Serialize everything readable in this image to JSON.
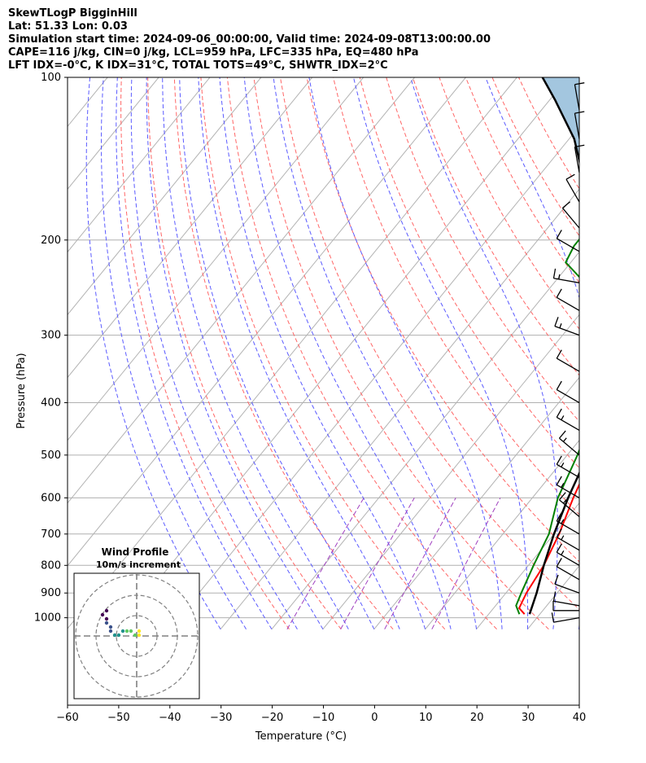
{
  "header": {
    "title": "SkewTLogP BigginHill",
    "location": "Lat: 51.33   Lon: 0.03",
    "times": "Simulation start time: 2024-09-06_00:00:00, Valid time: 2024-09-08T13:00:00.00",
    "indices1": "CAPE=116 j/kg, CIN=0 j/kg, LCL=959 hPa, LFC=335 hPa, EQ=480 hPa",
    "indices2": "LFT IDX=-0°C, K IDX=31°C, TOTAL TOTS=49°C, SHWTR_IDX=2°C"
  },
  "chart_data": [
    {
      "type": "line",
      "subtype": "skew-t log-p",
      "xlabel": "Temperature (°C)",
      "ylabel": "Pressure (hPa)",
      "xlim": [
        -60,
        40
      ],
      "ylim": [
        1050,
        100
      ],
      "y_scale": "log",
      "x_ticks": [
        "−60",
        "−50",
        "−40",
        "−30",
        "−20",
        "−10",
        "0",
        "10",
        "20",
        "30",
        "40"
      ],
      "y_ticks": [
        "100",
        "200",
        "300",
        "400",
        "500",
        "600",
        "700",
        "800",
        "900",
        "1000"
      ],
      "grid": true,
      "colors": {
        "temperature": "#ff0000",
        "dewpoint": "#008000",
        "parcel": "#000000",
        "cape_fill": "#a3c6df",
        "dry_adiabat": "#ff6666",
        "moist_adiabat": "#5a5aff",
        "mixing_ratio": "#a040c0",
        "skew_isotherm": "#b3b3b3",
        "wind_barb": "#000000"
      },
      "series": [
        {
          "role": "temperature",
          "points": [
            [
              17,
              985
            ],
            [
              15,
              960
            ],
            [
              14,
              900
            ],
            [
              13,
              800
            ],
            [
              11,
              700
            ],
            [
              8,
              600
            ],
            [
              5,
              500
            ],
            [
              0,
              400
            ],
            [
              -6,
              330
            ],
            [
              -9,
              300
            ],
            [
              -10,
              290
            ],
            [
              -3,
              260
            ],
            [
              2,
              240
            ],
            [
              3,
              220
            ],
            [
              2,
              200
            ],
            [
              1,
              180
            ],
            [
              1,
              160
            ],
            [
              0,
              140
            ],
            [
              -1,
              120
            ],
            [
              -4,
              110
            ],
            [
              -7,
              100
            ]
          ]
        },
        {
          "role": "dewpoint",
          "points": [
            [
              16,
              985
            ],
            [
              14,
              950
            ],
            [
              13,
              900
            ],
            [
              11,
              800
            ],
            [
              9,
              700
            ],
            [
              5,
              600
            ],
            [
              2,
              500
            ],
            [
              -1,
              430
            ],
            [
              -5,
              380
            ],
            [
              -10,
              330
            ],
            [
              -16,
              280
            ],
            [
              -24,
              240
            ],
            [
              -31,
              220
            ],
            [
              -32,
              205
            ],
            [
              -32,
              185
            ],
            [
              -32,
              170
            ],
            [
              -32,
              150
            ],
            [
              -29,
              130
            ],
            [
              -26,
              115
            ],
            [
              -25,
              100
            ]
          ]
        },
        {
          "role": "parcel",
          "points": [
            [
              18,
              985
            ],
            [
              16,
              900
            ],
            [
              13,
              800
            ],
            [
              10,
              700
            ],
            [
              7,
              600
            ],
            [
              4,
              500
            ],
            [
              -1,
              400
            ],
            [
              -5,
              335
            ],
            [
              -11,
              300
            ],
            [
              -19,
              250
            ],
            [
              -29,
              200
            ],
            [
              -39,
              160
            ],
            [
              -49,
              130
            ],
            [
              -59,
              110
            ],
            [
              -65,
              100
            ]
          ]
        }
      ],
      "wind_barbs": [
        {
          "p": 1000,
          "speed_kt": 10,
          "dir": 260
        },
        {
          "p": 970,
          "speed_kt": 10,
          "dir": 270
        },
        {
          "p": 950,
          "speed_kt": 10,
          "dir": 280
        },
        {
          "p": 900,
          "speed_kt": 10,
          "dir": 290
        },
        {
          "p": 850,
          "speed_kt": 10,
          "dir": 300
        },
        {
          "p": 800,
          "speed_kt": 15,
          "dir": 300
        },
        {
          "p": 750,
          "speed_kt": 15,
          "dir": 300
        },
        {
          "p": 700,
          "speed_kt": 15,
          "dir": 300
        },
        {
          "p": 650,
          "speed_kt": 15,
          "dir": 310
        },
        {
          "p": 600,
          "speed_kt": 15,
          "dir": 300
        },
        {
          "p": 550,
          "speed_kt": 15,
          "dir": 300
        },
        {
          "p": 500,
          "speed_kt": 15,
          "dir": 310
        },
        {
          "p": 450,
          "speed_kt": 15,
          "dir": 300
        },
        {
          "p": 400,
          "speed_kt": 10,
          "dir": 300
        },
        {
          "p": 350,
          "speed_kt": 10,
          "dir": 300
        },
        {
          "p": 300,
          "speed_kt": 15,
          "dir": 290
        },
        {
          "p": 270,
          "speed_kt": 10,
          "dir": 300
        },
        {
          "p": 240,
          "speed_kt": 15,
          "dir": 280
        },
        {
          "p": 210,
          "speed_kt": 10,
          "dir": 300
        },
        {
          "p": 190,
          "speed_kt": 10,
          "dir": 320
        },
        {
          "p": 170,
          "speed_kt": 10,
          "dir": 330
        },
        {
          "p": 150,
          "speed_kt": 10,
          "dir": 350
        },
        {
          "p": 130,
          "speed_kt": 10,
          "dir": 350
        },
        {
          "p": 115,
          "speed_kt": 10,
          "dir": 350
        }
      ]
    },
    {
      "type": "scatter",
      "subtype": "hodograph",
      "title": "Wind Profile",
      "subtitle": "10m/s increment",
      "rings": [
        10,
        20,
        30
      ],
      "points": [
        [
          -3,
          6
        ],
        [
          -4,
          5
        ],
        [
          -3,
          4
        ],
        [
          -3,
          3
        ],
        [
          -2,
          2
        ],
        [
          -2,
          1
        ],
        [
          -1,
          0
        ],
        [
          0,
          0
        ],
        [
          1,
          1
        ],
        [
          2,
          1
        ],
        [
          3,
          1
        ],
        [
          4,
          0
        ],
        [
          5,
          0
        ],
        [
          5,
          1
        ]
      ]
    }
  ]
}
